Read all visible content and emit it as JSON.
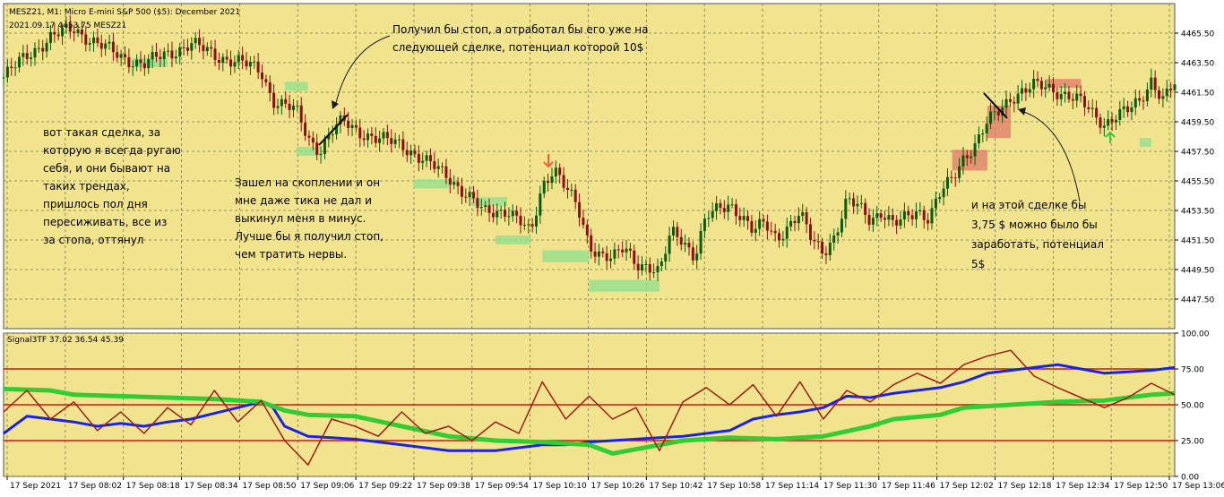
{
  "window": {
    "title": "MESZ21, M1:  Micro E-mini S&P 500 ($5): December 2021",
    "subtitle": "2021.09.17   4453.75   MESZ21"
  },
  "colors": {
    "background": "#f2e48f",
    "grid": "#7a7a4a",
    "bull_candle": "#0a5c0a",
    "bear_candle": "#8b1010",
    "price_zone_green": "#8de08d",
    "price_zone_red": "#e07a6a",
    "indicator_blue": "#1a22e8",
    "indicator_green": "#33cc33",
    "indicator_brown": "#9a1d10",
    "level_red": "#e01010",
    "annotation_arrow": "#1a1a1a"
  },
  "annotations": {
    "top_center": "Получил бы стоп, а отработал бы его уже на следующей сделке, потенциал которой 10$",
    "left": "вот такая сделка, за которую я всегда ругаю себя, и они бывают на таких трендах, пришлось пол дня пересиживать, все из за стопа, оттянул",
    "middle": "Зашел на скоплении и он мне даже тика не дал и выкинул меня в минус. Лучше бы я получил стоп, чем тратить нервы.",
    "right": "и на этой сделке бы 3,75 $ можно  было бы заработать, потенциал 5$"
  },
  "chart_data": [
    {
      "type": "candlestick",
      "title": "MESZ21, M1:  Micro E-mini S&P 500 ($5): December 2021",
      "x_tick_labels": [
        "17 Sep 2021",
        "17 Sep 08:02",
        "17 Sep 08:18",
        "17 Sep 08:34",
        "17 Sep 08:50",
        "17 Sep 09:06",
        "17 Sep 09:22",
        "17 Sep 09:38",
        "17 Sep 09:54",
        "17 Sep 10:10",
        "17 Sep 10:26",
        "17 Sep 10:42",
        "17 Sep 10:58",
        "17 Sep 11:14",
        "17 Sep 11:30",
        "17 Sep 11:46",
        "17 Sep 12:02",
        "17 Sep 12:18",
        "17 Sep 12:34",
        "17 Sep 12:50",
        "17 Sep 13:06"
      ],
      "y_tick_labels": [
        "4447.50",
        "4449.50",
        "4451.50",
        "4453.50",
        "4455.50",
        "4457.50",
        "4459.50",
        "4461.50",
        "4463.50",
        "4465.50"
      ],
      "ylim": [
        4445.5,
        4467.5
      ],
      "grid": true,
      "close_path": [
        [
          0,
          4462.5
        ],
        [
          2,
          4464.0
        ],
        [
          4,
          4465.2
        ],
        [
          6,
          4465.8
        ],
        [
          8,
          4464.8
        ],
        [
          10,
          4463.9
        ],
        [
          12,
          4463.4
        ],
        [
          14,
          4464.1
        ],
        [
          16,
          4464.8
        ],
        [
          18,
          4464.0
        ],
        [
          20,
          4463.6
        ],
        [
          22,
          4462.9
        ],
        [
          23,
          4461.0
        ],
        [
          25,
          4460.2
        ],
        [
          26,
          4458.4
        ],
        [
          27,
          4457.6
        ],
        [
          28,
          4458.8
        ],
        [
          29,
          4459.5
        ],
        [
          30,
          4459.0
        ],
        [
          32,
          4458.3
        ],
        [
          34,
          4458.0
        ],
        [
          36,
          4456.8
        ],
        [
          38,
          4455.8
        ],
        [
          40,
          4454.2
        ],
        [
          41,
          4453.3
        ],
        [
          43,
          4453.6
        ],
        [
          44,
          4452.8
        ],
        [
          45,
          4451.8
        ],
        [
          46,
          4455.2
        ],
        [
          47,
          4456.5
        ],
        [
          48,
          4455.0
        ],
        [
          49,
          4453.6
        ],
        [
          50,
          4451.2
        ],
        [
          51,
          4450.6
        ],
        [
          52,
          4450.2
        ],
        [
          53,
          4450.9
        ],
        [
          54,
          4450.0
        ],
        [
          55,
          4449.8
        ],
        [
          56,
          4449.2
        ],
        [
          57,
          4452.0
        ],
        [
          58,
          4451.6
        ],
        [
          59,
          4450.4
        ],
        [
          60,
          4453.0
        ],
        [
          62,
          4454.0
        ],
        [
          63,
          4453.2
        ],
        [
          64,
          4452.0
        ],
        [
          65,
          4452.6
        ],
        [
          66,
          4451.7
        ],
        [
          68,
          4453.2
        ],
        [
          69,
          4451.5
        ],
        [
          70,
          4450.8
        ],
        [
          71,
          4451.8
        ],
        [
          72,
          4454.0
        ],
        [
          73,
          4453.8
        ],
        [
          74,
          4453.0
        ],
        [
          75,
          4453.4
        ],
        [
          76,
          4452.4
        ],
        [
          77,
          4453.0
        ],
        [
          78,
          4453.6
        ],
        [
          79,
          4453.0
        ],
        [
          80,
          4454.6
        ],
        [
          81,
          4455.6
        ],
        [
          82,
          4457.2
        ],
        [
          83,
          4458.0
        ],
        [
          84,
          4459.4
        ],
        [
          85,
          4460.2
        ],
        [
          86,
          4461.2
        ],
        [
          87,
          4461.6
        ],
        [
          88,
          4461.9
        ],
        [
          89,
          4461.8
        ],
        [
          90,
          4461.6
        ],
        [
          91,
          4461.3
        ],
        [
          92,
          4460.8
        ],
        [
          93,
          4460.0
        ],
        [
          94,
          4459.4
        ],
        [
          95,
          4460.0
        ],
        [
          96,
          4460.2
        ],
        [
          97,
          4460.8
        ],
        [
          98,
          4462.4
        ],
        [
          99,
          4461.1
        ],
        [
          100,
          4462.0
        ]
      ],
      "bull_zones": [
        {
          "x": [
            11,
            14
          ],
          "y": [
            4463.2,
            4463.8
          ]
        },
        {
          "x": [
            24,
            26
          ],
          "y": [
            4461.6,
            4462.2
          ]
        },
        {
          "x": [
            25,
            27
          ],
          "y": [
            4457.2,
            4457.8
          ]
        },
        {
          "x": [
            35,
            38
          ],
          "y": [
            4455.0,
            4455.6
          ]
        },
        {
          "x": [
            40,
            43
          ],
          "y": [
            4453.8,
            4454.4
          ]
        },
        {
          "x": [
            42,
            45
          ],
          "y": [
            4451.2,
            4451.8
          ]
        },
        {
          "x": [
            46,
            50
          ],
          "y": [
            4450.0,
            4450.8
          ]
        },
        {
          "x": [
            50,
            56
          ],
          "y": [
            4448.0,
            4448.8
          ]
        },
        {
          "x": [
            97,
            98
          ],
          "y": [
            4457.8,
            4458.4
          ]
        }
      ],
      "bear_zones": [
        {
          "x": [
            81,
            84
          ],
          "y": [
            4456.2,
            4457.6
          ]
        },
        {
          "x": [
            84,
            86
          ],
          "y": [
            4458.4,
            4460.6
          ]
        },
        {
          "x": [
            89,
            92
          ],
          "y": [
            4461.8,
            4462.4
          ]
        }
      ]
    },
    {
      "type": "line",
      "title": "Signal3TF 37.02 36.54 45.39",
      "ylim": [
        0,
        100
      ],
      "y_tick_labels": [
        "0.00",
        "25.00",
        "50.00",
        "75.00",
        "100.00"
      ],
      "levels": [
        25,
        50,
        75
      ],
      "grid": true,
      "series": [
        {
          "name": "",
          "color_key": "indicator_blue",
          "values": [
            [
              0,
              30
            ],
            [
              2,
              42
            ],
            [
              4,
              40
            ],
            [
              6,
              38
            ],
            [
              8,
              35
            ],
            [
              10,
              37
            ],
            [
              12,
              35
            ],
            [
              14,
              38
            ],
            [
              16,
              40
            ],
            [
              18,
              44
            ],
            [
              20,
              48
            ],
            [
              22,
              52
            ],
            [
              23,
              48
            ],
            [
              24,
              35
            ],
            [
              26,
              28
            ],
            [
              28,
              27
            ],
            [
              30,
              26
            ],
            [
              32,
              24
            ],
            [
              34,
              22
            ],
            [
              36,
              20
            ],
            [
              38,
              18
            ],
            [
              40,
              18
            ],
            [
              42,
              18
            ],
            [
              44,
              20
            ],
            [
              46,
              22
            ],
            [
              48,
              22
            ],
            [
              50,
              24
            ],
            [
              52,
              25
            ],
            [
              54,
              26
            ],
            [
              56,
              27
            ],
            [
              58,
              28
            ],
            [
              60,
              30
            ],
            [
              62,
              32
            ],
            [
              64,
              40
            ],
            [
              66,
              43
            ],
            [
              68,
              45
            ],
            [
              70,
              48
            ],
            [
              72,
              56
            ],
            [
              74,
              55
            ],
            [
              76,
              58
            ],
            [
              78,
              60
            ],
            [
              80,
              62
            ],
            [
              82,
              66
            ],
            [
              84,
              72
            ],
            [
              86,
              74
            ],
            [
              88,
              76
            ],
            [
              90,
              78
            ],
            [
              92,
              75
            ],
            [
              94,
              72
            ],
            [
              96,
              73
            ],
            [
              98,
              74
            ],
            [
              100,
              76
            ]
          ]
        },
        {
          "name": "",
          "color_key": "indicator_green",
          "values": [
            [
              0,
              61
            ],
            [
              4,
              60
            ],
            [
              6,
              57
            ],
            [
              10,
              56
            ],
            [
              14,
              55
            ],
            [
              18,
              54
            ],
            [
              22,
              52
            ],
            [
              24,
              46
            ],
            [
              26,
              43
            ],
            [
              30,
              42
            ],
            [
              34,
              35
            ],
            [
              38,
              28
            ],
            [
              42,
              25
            ],
            [
              46,
              24
            ],
            [
              50,
              22
            ],
            [
              52,
              16
            ],
            [
              56,
              22
            ],
            [
              58,
              25
            ],
            [
              62,
              27
            ],
            [
              66,
              26
            ],
            [
              70,
              28
            ],
            [
              74,
              35
            ],
            [
              76,
              40
            ],
            [
              80,
              43
            ],
            [
              82,
              48
            ],
            [
              86,
              50
            ],
            [
              90,
              52
            ],
            [
              94,
              53
            ],
            [
              98,
              57
            ],
            [
              100,
              58
            ]
          ]
        },
        {
          "name": "",
          "color_key": "indicator_brown",
          "values": [
            [
              0,
              45
            ],
            [
              2,
              60
            ],
            [
              4,
              40
            ],
            [
              6,
              52
            ],
            [
              8,
              32
            ],
            [
              10,
              45
            ],
            [
              12,
              30
            ],
            [
              14,
              48
            ],
            [
              16,
              36
            ],
            [
              18,
              60
            ],
            [
              20,
              38
            ],
            [
              22,
              53
            ],
            [
              24,
              25
            ],
            [
              26,
              8
            ],
            [
              28,
              40
            ],
            [
              30,
              35
            ],
            [
              32,
              28
            ],
            [
              34,
              45
            ],
            [
              36,
              30
            ],
            [
              38,
              35
            ],
            [
              40,
              25
            ],
            [
              42,
              38
            ],
            [
              44,
              30
            ],
            [
              46,
              66
            ],
            [
              48,
              40
            ],
            [
              50,
              56
            ],
            [
              52,
              40
            ],
            [
              54,
              48
            ],
            [
              56,
              18
            ],
            [
              58,
              52
            ],
            [
              60,
              62
            ],
            [
              62,
              50
            ],
            [
              64,
              64
            ],
            [
              66,
              42
            ],
            [
              68,
              66
            ],
            [
              70,
              40
            ],
            [
              72,
              60
            ],
            [
              74,
              52
            ],
            [
              76,
              64
            ],
            [
              78,
              72
            ],
            [
              80,
              65
            ],
            [
              82,
              78
            ],
            [
              84,
              84
            ],
            [
              86,
              88
            ],
            [
              88,
              70
            ],
            [
              90,
              62
            ],
            [
              92,
              55
            ],
            [
              94,
              48
            ],
            [
              96,
              55
            ],
            [
              98,
              65
            ],
            [
              100,
              57
            ]
          ]
        }
      ]
    }
  ]
}
